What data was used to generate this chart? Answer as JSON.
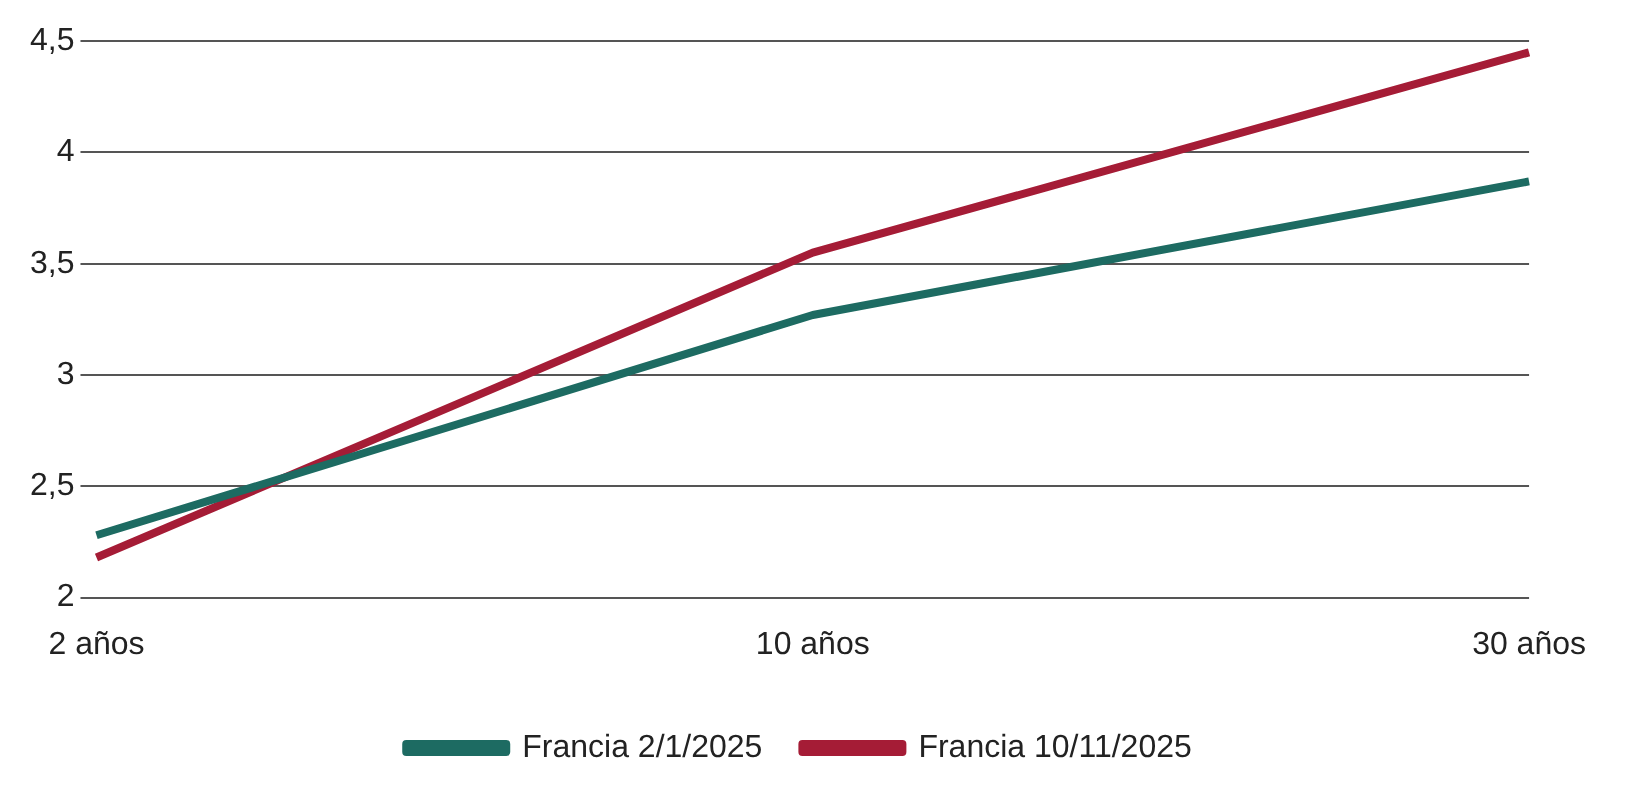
{
  "chart_data": {
    "type": "line",
    "categories": [
      "2 años",
      "10 años",
      "30 años"
    ],
    "series": [
      {
        "name": "Francia 2/1/2025",
        "color": "#1d6b62",
        "values": [
          2.28,
          3.27,
          3.87
        ]
      },
      {
        "name": "Francia 10/11/2025",
        "color": "#a51c36",
        "values": [
          2.18,
          3.55,
          4.45
        ]
      }
    ],
    "ylim": [
      2,
      4.5
    ],
    "yticks": [
      2,
      {
        "value": 2.5,
        "label": "2,5"
      },
      3,
      {
        "value": 3.5,
        "label": "3,5"
      },
      4,
      {
        "value": 4.5,
        "label": "4,5"
      }
    ],
    "grid": "y",
    "legend": "bottom",
    "marker": "none",
    "line_style": "solid"
  }
}
